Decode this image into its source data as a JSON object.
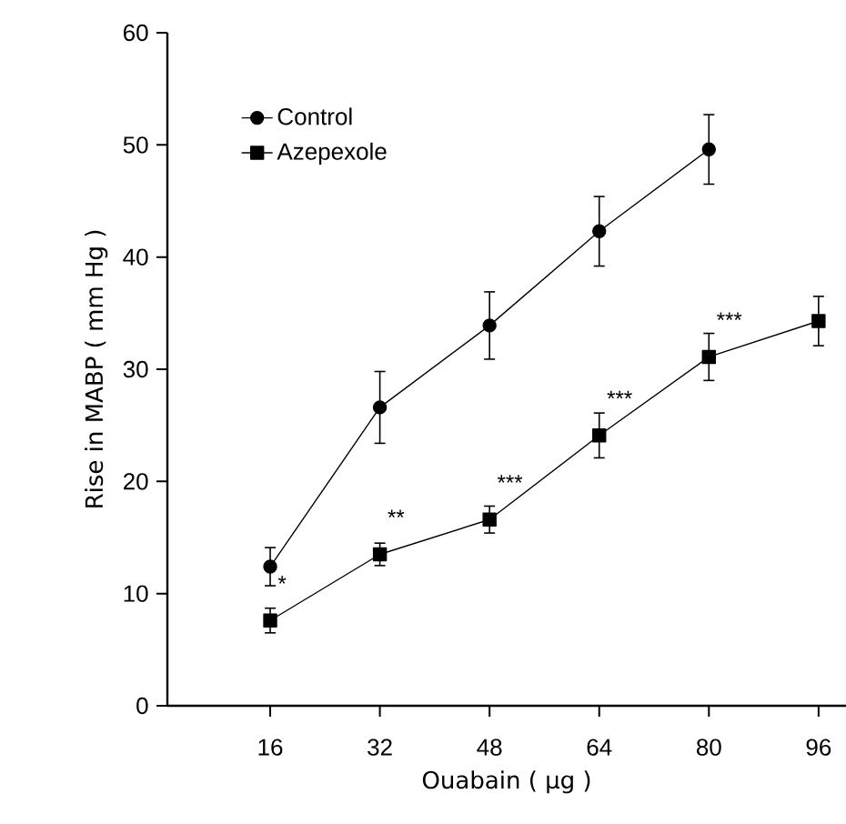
{
  "chart_data": {
    "type": "line",
    "xlabel": "Ouabain ( μg )",
    "ylabel": "Rise in MABP ( mm Hg )",
    "x": [
      16,
      32,
      48,
      64,
      80,
      96
    ],
    "series": [
      {
        "name": "Control",
        "color": "#000000",
        "marker": "circle",
        "values": [
          12.4,
          26.6,
          33.9,
          42.3,
          49.6,
          null
        ],
        "errors": [
          1.7,
          3.2,
          3.0,
          3.1,
          3.1,
          null
        ]
      },
      {
        "name": "Azepexole",
        "color": "#000000",
        "marker": "square",
        "values": [
          7.6,
          13.5,
          16.6,
          24.1,
          31.1,
          34.3
        ],
        "errors": [
          1.1,
          1.0,
          1.2,
          2.0,
          2.1,
          2.2
        ]
      }
    ],
    "annotations": [
      {
        "text": "*",
        "x": 16,
        "y": 7.6
      },
      {
        "text": "**",
        "x": 32,
        "y": 13.5
      },
      {
        "text": "***",
        "x": 48,
        "y": 16.6
      },
      {
        "text": "***",
        "x": 64,
        "y": 24.1
      },
      {
        "text": "***",
        "x": 80,
        "y": 31.1
      }
    ],
    "xlim": [
      1,
      100
    ],
    "xticks": [
      16,
      32,
      48,
      64,
      80,
      96
    ],
    "ylim": [
      0,
      60
    ],
    "yticks": [
      0,
      10,
      20,
      30,
      40,
      50,
      60
    ],
    "legend": "top left",
    "grid": false,
    "line_style": "solid"
  }
}
